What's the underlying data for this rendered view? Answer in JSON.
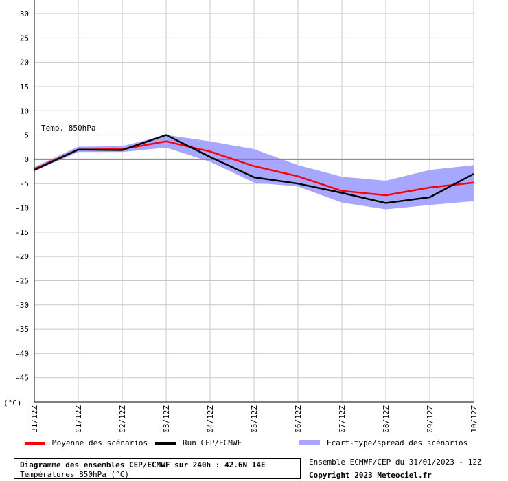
{
  "chart_data": {
    "type": "line",
    "title": "Diagramme des ensembles CEP/ECMWF sur 240h : 42.6N 14E",
    "subtitle": "Températures 850hPa (°C)",
    "annotation": "Temp. 850hPa",
    "unit_label": "(°C)",
    "ylim": [
      -50,
      30
    ],
    "yticks": [
      30,
      25,
      20,
      15,
      10,
      5,
      0,
      -5,
      -10,
      -15,
      -20,
      -25,
      -30,
      -35,
      -40,
      -45
    ],
    "categories": [
      "31/12Z",
      "01/12Z",
      "02/12Z",
      "03/12Z",
      "04/12Z",
      "05/12Z",
      "06/12Z",
      "07/12Z",
      "08/12Z",
      "09/12Z",
      "10/12Z"
    ],
    "x": [
      0,
      1,
      2,
      3,
      4,
      5,
      6,
      7,
      8,
      9,
      10
    ],
    "grid": true,
    "series": [
      {
        "name": "Moyenne des scénarios",
        "color": "#ff0000",
        "values": [
          -2.0,
          2.0,
          2.1,
          3.7,
          1.6,
          -1.4,
          -3.5,
          -6.5,
          -7.4,
          -5.8,
          -4.8
        ]
      },
      {
        "name": "Run CEP/ECMWF",
        "color": "#000000",
        "values": [
          -2.2,
          2.0,
          1.9,
          5.0,
          0.5,
          -3.7,
          -5.0,
          -6.9,
          -9.0,
          -7.8,
          -3.0
        ]
      }
    ],
    "spread": {
      "name": "Ecart-type/spread des scénarios",
      "color": "#a7a7ff",
      "upper": [
        -1.6,
        2.6,
        2.7,
        5.0,
        3.7,
        2.1,
        -1.2,
        -3.6,
        -4.4,
        -2.2,
        -1.2
      ],
      "lower": [
        -2.4,
        1.5,
        1.5,
        2.4,
        -0.5,
        -4.8,
        -5.6,
        -8.9,
        -10.3,
        -9.4,
        -8.6
      ]
    }
  },
  "footer": {
    "run_info": "Ensemble ECMWF/CEP du 31/01/2023 - 12Z",
    "copyright": "Copyright 2023 Meteociel.fr"
  }
}
